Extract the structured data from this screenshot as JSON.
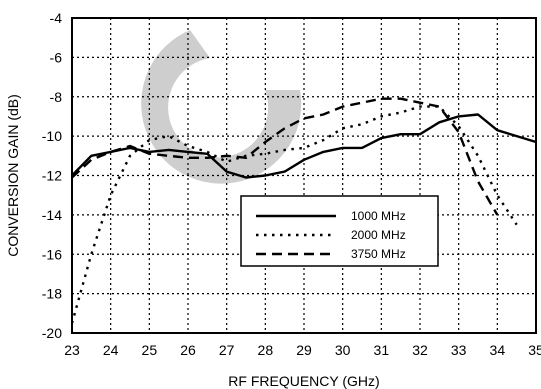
{
  "chart_data": {
    "type": "line",
    "title": "",
    "xlabel": "RF FREQUENCY (GHz)",
    "ylabel": "CONVERSION GAIN (dB)",
    "xlim": [
      23,
      35
    ],
    "ylim": [
      -20,
      -4
    ],
    "xticks": [
      23,
      24,
      25,
      26,
      27,
      28,
      29,
      30,
      31,
      32,
      33,
      34,
      35
    ],
    "yticks": [
      -20,
      -18,
      -16,
      -14,
      -12,
      -10,
      -8,
      -6,
      -4
    ],
    "xtick_labels": [
      "23",
      "24",
      "25",
      "26",
      "27",
      "28",
      "29",
      "30",
      "31",
      "32",
      "33",
      "34",
      "35"
    ],
    "ytick_labels": [
      "-20",
      "-18",
      "-16",
      "-14",
      "-12",
      "-10",
      "-8",
      "-6",
      "-4"
    ],
    "grid": true,
    "grid_style": "dotted",
    "legend_position": "lower-right",
    "series": [
      {
        "name": "1000 MHz",
        "style": "solid",
        "x": [
          23.0,
          23.5,
          24.0,
          24.5,
          25.0,
          25.5,
          26.0,
          26.5,
          27.0,
          27.5,
          28.0,
          28.5,
          29.0,
          29.5,
          30.0,
          30.5,
          31.0,
          31.5,
          32.0,
          32.5,
          33.0,
          33.5,
          34.0,
          34.5,
          35.0
        ],
        "y": [
          -12.0,
          -11.0,
          -10.8,
          -10.6,
          -10.8,
          -10.7,
          -10.8,
          -10.9,
          -11.8,
          -12.1,
          -12.0,
          -11.8,
          -11.2,
          -10.8,
          -10.6,
          -10.6,
          -10.1,
          -9.9,
          -9.9,
          -9.3,
          -9.0,
          -8.9,
          -9.7,
          -10.0,
          -10.3
        ]
      },
      {
        "name": "2000 MHz",
        "style": "dotted",
        "x": [
          23.0,
          23.5,
          24.0,
          24.5,
          25.0,
          25.5,
          26.0,
          26.5,
          27.0,
          27.5,
          28.0,
          28.5,
          29.0,
          29.5,
          30.0,
          30.5,
          31.0,
          31.5,
          32.0,
          32.5,
          33.0,
          33.5,
          34.0,
          34.5
        ],
        "y": [
          -19.5,
          -16.0,
          -13.0,
          -11.0,
          -10.2,
          -10.0,
          -10.5,
          -10.8,
          -11.3,
          -11.0,
          -10.9,
          -10.7,
          -10.6,
          -10.2,
          -9.6,
          -9.4,
          -9.0,
          -8.8,
          -8.5,
          -8.5,
          -9.5,
          -11.0,
          -13.0,
          -14.5
        ]
      },
      {
        "name": "3750 MHz",
        "style": "dashed",
        "x": [
          23.0,
          23.5,
          24.0,
          24.5,
          25.0,
          25.5,
          26.0,
          26.5,
          27.0,
          27.5,
          28.0,
          28.5,
          29.0,
          29.5,
          30.0,
          30.5,
          31.0,
          31.5,
          32.0,
          32.5,
          33.0,
          33.5,
          34.0
        ],
        "y": [
          -12.1,
          -11.2,
          -10.8,
          -10.5,
          -10.9,
          -11.0,
          -11.1,
          -11.1,
          -11.0,
          -11.1,
          -10.3,
          -9.6,
          -9.1,
          -8.9,
          -8.5,
          -8.3,
          -8.1,
          -8.1,
          -8.3,
          -8.5,
          -9.8,
          -12.3,
          -14.0
        ]
      }
    ]
  }
}
